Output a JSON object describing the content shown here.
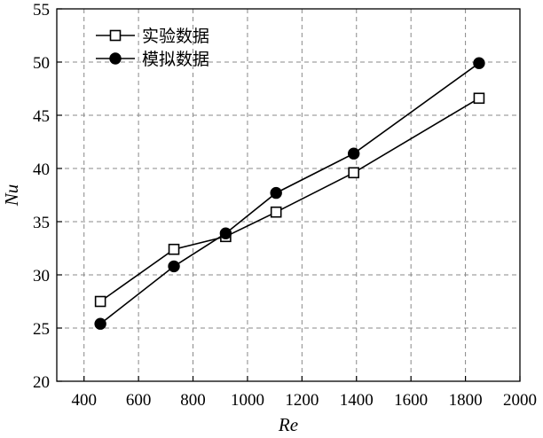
{
  "chart_data": {
    "type": "line",
    "xlabel": "Re",
    "ylabel": "Nu",
    "xlim": [
      300,
      2000
    ],
    "ylim": [
      20,
      55
    ],
    "xticks": [
      400,
      600,
      800,
      1000,
      1200,
      1400,
      1600,
      1800,
      2000
    ],
    "yticks": [
      20,
      25,
      30,
      35,
      40,
      45,
      50,
      55
    ],
    "grid": true,
    "legend_position": "top-left",
    "series": [
      {
        "name": "实验数据",
        "marker": "open-square",
        "color": "#000000",
        "x": [
          460,
          730,
          920,
          1105,
          1390,
          1850
        ],
        "y": [
          27.5,
          32.4,
          33.6,
          35.9,
          39.6,
          46.6
        ]
      },
      {
        "name": "模拟数据",
        "marker": "filled-circle",
        "color": "#000000",
        "x": [
          460,
          730,
          920,
          1105,
          1390,
          1850
        ],
        "y": [
          25.4,
          30.8,
          33.9,
          37.7,
          41.4,
          49.9
        ]
      }
    ]
  }
}
